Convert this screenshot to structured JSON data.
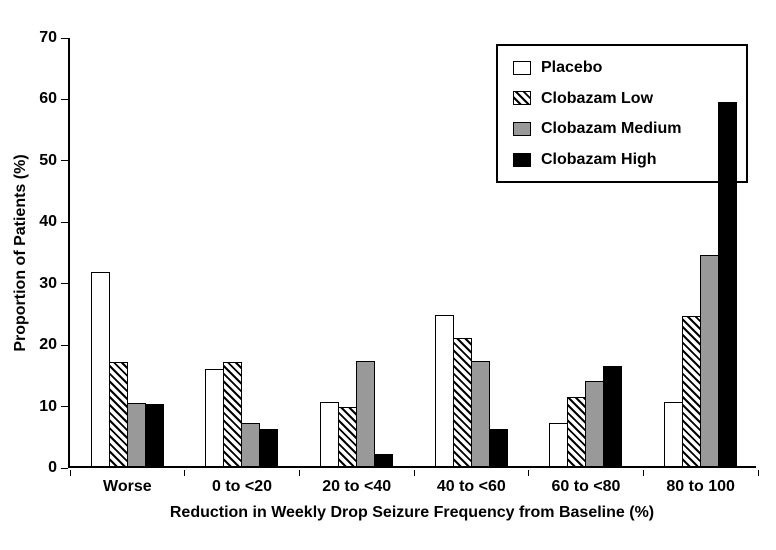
{
  "chart_data": {
    "type": "bar",
    "title": "",
    "xlabel": "Reduction in Weekly Drop Seizure Frequency from Baseline (%)",
    "ylabel": "Proportion of Patients (%)",
    "ylim": [
      0,
      70
    ],
    "yticks": [
      0,
      10,
      20,
      30,
      40,
      50,
      60,
      70
    ],
    "grid": false,
    "legend_position": "top-right-inside",
    "categories": [
      "Worse",
      "0 to <20",
      "20 to <40",
      "40 to <60",
      "60 to <80",
      "80 to 100"
    ],
    "series": [
      {
        "name": "Placebo",
        "fill": "white",
        "color": "#ffffff",
        "values": [
          31.6,
          15.8,
          10.4,
          24.6,
          7.0,
          10.4
        ]
      },
      {
        "name": "Clobazam Low",
        "fill": "hatch",
        "color": "#000000",
        "values": [
          16.9,
          16.9,
          9.6,
          20.8,
          11.2,
          24.4
        ]
      },
      {
        "name": "Clobazam Medium",
        "fill": "gray",
        "color": "#999999",
        "values": [
          10.3,
          7.0,
          17.1,
          17.1,
          13.8,
          34.4
        ]
      },
      {
        "name": "Clobazam High",
        "fill": "black",
        "color": "#000000",
        "values": [
          10.1,
          6.0,
          2.0,
          6.0,
          16.3,
          59.3
        ]
      }
    ]
  }
}
